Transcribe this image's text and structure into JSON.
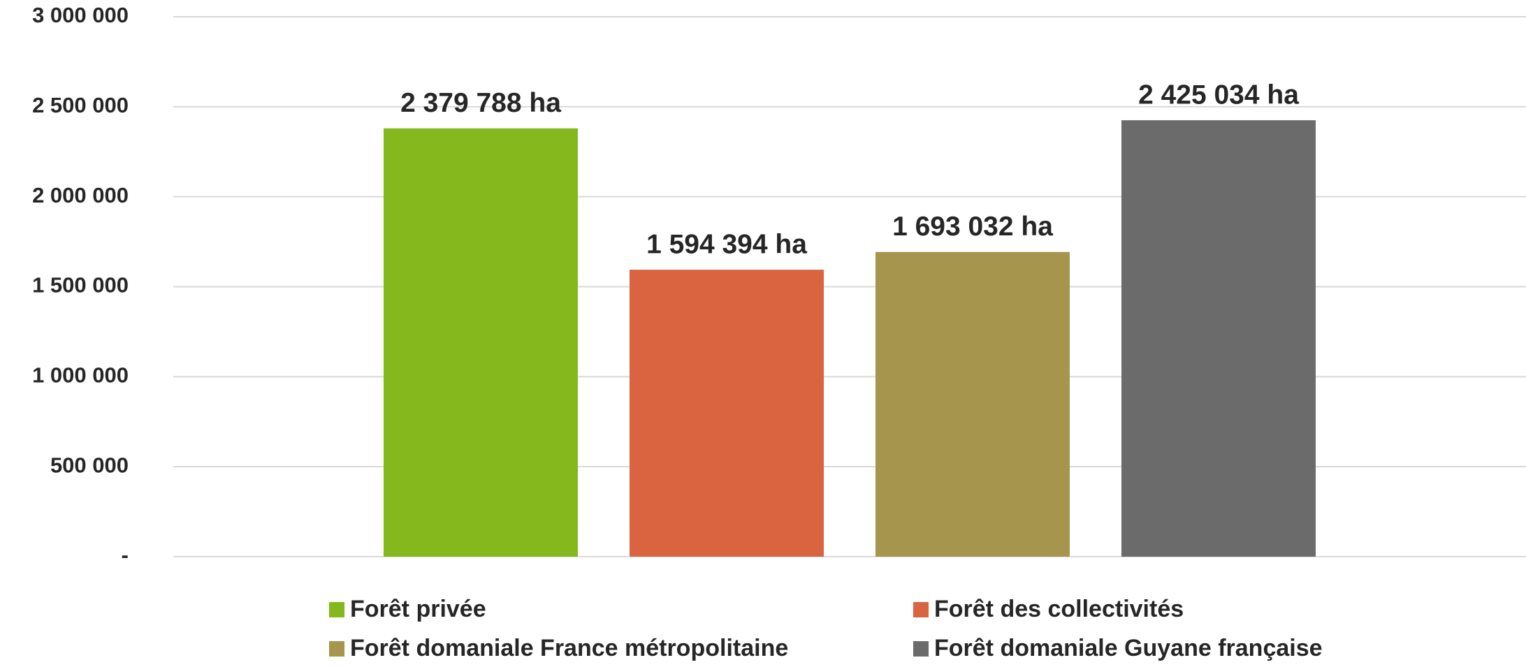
{
  "chart_data": {
    "type": "bar",
    "categories": [
      null
    ],
    "series": [
      {
        "name": "Forêt privée",
        "color": "#84b81c",
        "values": [
          2379788
        ],
        "value_labels": [
          "2 379 788 ha"
        ]
      },
      {
        "name": "Forêt des collectivités",
        "color": "#d9643f",
        "values": [
          1594394
        ],
        "value_labels": [
          "1 594 394 ha"
        ]
      },
      {
        "name": "Forêt domaniale France métropolitaine",
        "color": "#a5954d",
        "values": [
          1693032
        ],
        "value_labels": [
          "1 693 032 ha"
        ]
      },
      {
        "name": "Forêt domaniale Guyane française",
        "color": "#6b6b6b",
        "values": [
          2425034
        ],
        "value_labels": [
          "2 425 034 ha"
        ]
      }
    ],
    "ylim": [
      0,
      3000000
    ],
    "yticks": [
      {
        "value": 0,
        "label": "-"
      },
      {
        "value": 500000,
        "label": "500 000"
      },
      {
        "value": 1000000,
        "label": "1 000 000"
      },
      {
        "value": 1500000,
        "label": "1 500 000"
      },
      {
        "value": 2000000,
        "label": "2 000 000"
      },
      {
        "value": 2500000,
        "label": "2 500 000"
      },
      {
        "value": 3000000,
        "label": "3 000 000"
      }
    ],
    "grid": true,
    "legend": "bottom"
  }
}
